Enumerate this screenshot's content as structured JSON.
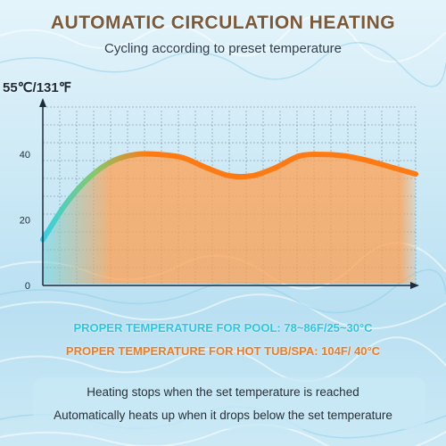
{
  "colors": {
    "title": "#7b5a3a",
    "pool_text": "#2dc4e6",
    "spa_text": "#f07a21",
    "curve": "#ff7a12",
    "curve_start": "#33d1e6",
    "fill": "#ffa050"
  },
  "header": {
    "title": "AUTOMATIC CIRCULATION HEATING",
    "subtitle": "Cycling according to preset temperature"
  },
  "chart_data": {
    "type": "area",
    "title": "",
    "xlabel": "",
    "ylabel": "55℃/131℉",
    "x": [
      0,
      1,
      2,
      3,
      4,
      5,
      6,
      7,
      8,
      9,
      10,
      11,
      12,
      13,
      14,
      15,
      16
    ],
    "series": [
      {
        "values": [
          14,
          25,
          33,
          38,
          40,
          40,
          39,
          36,
          33.5,
          33.5,
          36,
          39.5,
          40,
          39.5,
          38,
          36,
          34
        ]
      }
    ],
    "ylim": [
      0,
      55
    ],
    "yticks": [
      0,
      20,
      40
    ],
    "ytick_labels": [
      "0",
      "20",
      "40"
    ],
    "grid": true
  },
  "info": {
    "pool": "PROPER TEMPERATURE FOR POOL: 78~86F/25~30°C",
    "spa": "PROPER TEMPERATURE FOR HOT TUB/SPA: 104F/ 40°C"
  },
  "notes": {
    "line1": "Heating stops when the set temperature is reached",
    "line2": "Automatically heats up when it drops below the set temperature"
  }
}
